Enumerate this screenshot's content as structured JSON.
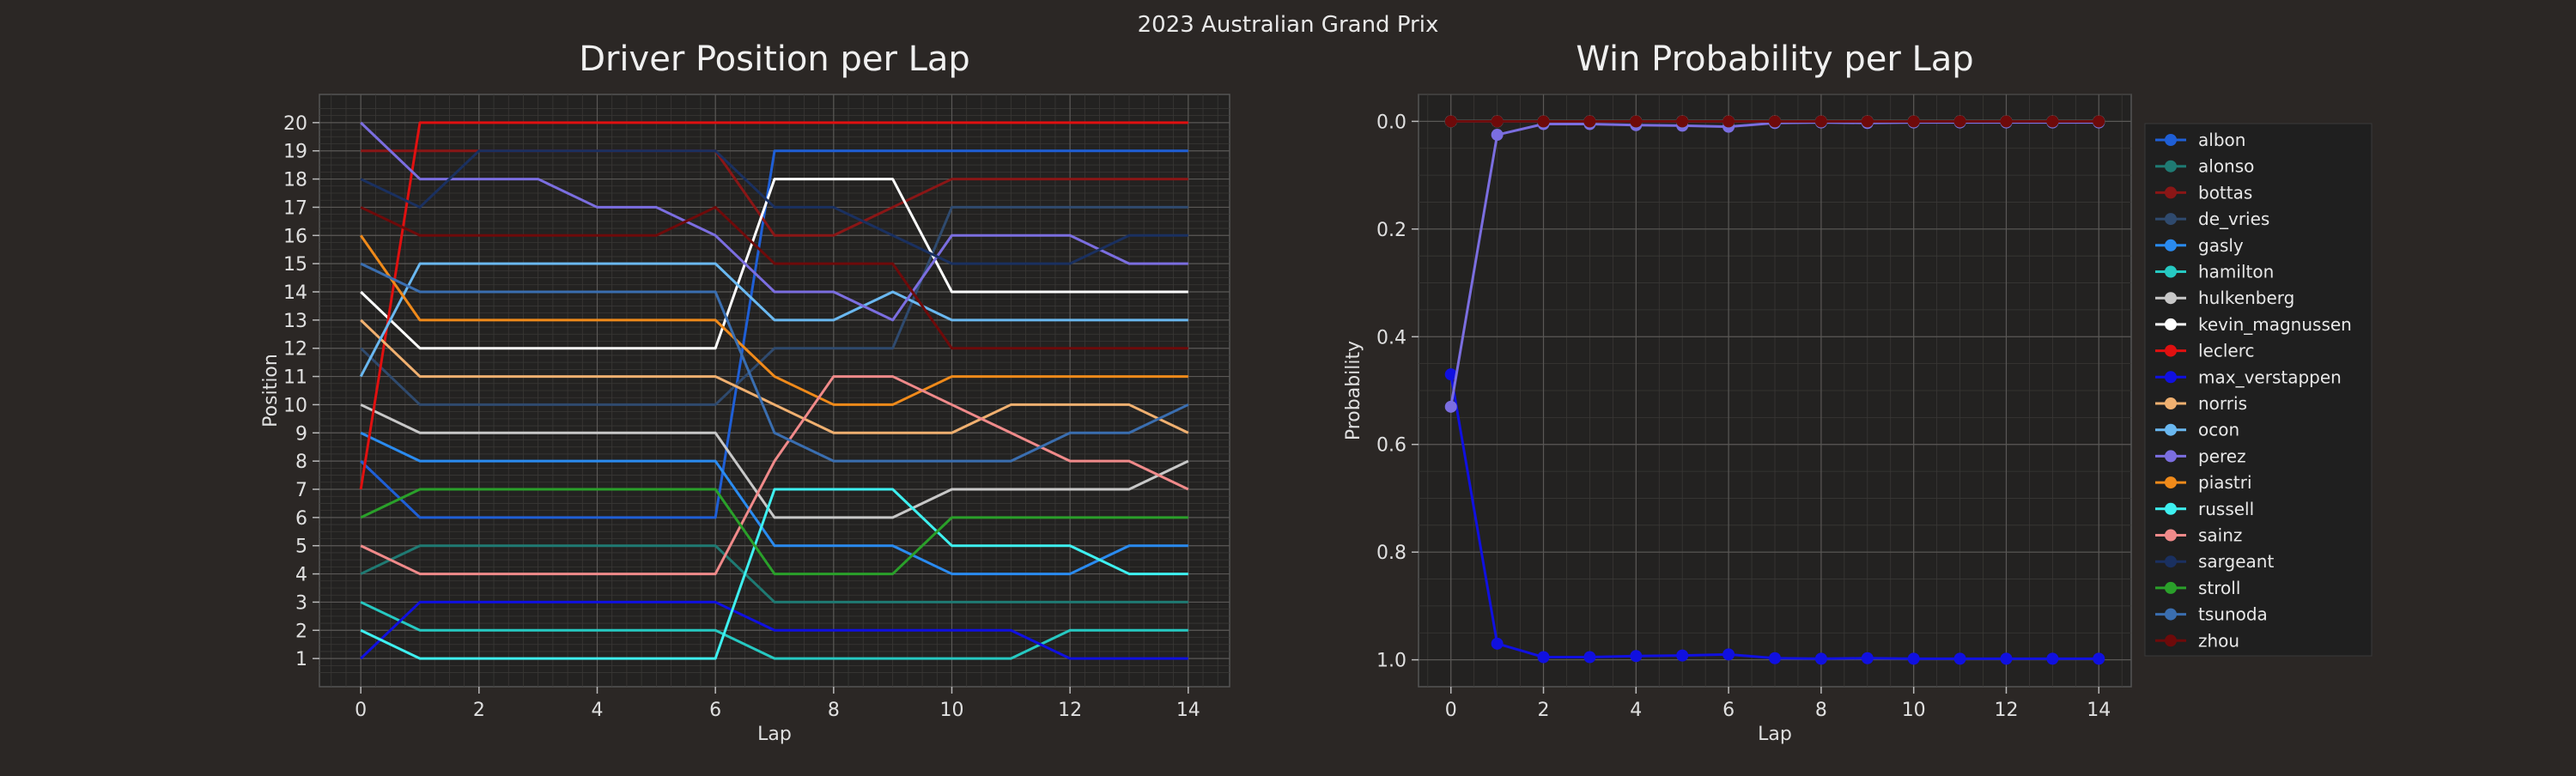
{
  "suptitle": "2023 Australian Grand Prix",
  "chart_data": [
    {
      "type": "line",
      "title": "Driver Position per Lap",
      "xlabel": "Lap",
      "ylabel": "Position",
      "x": [
        0,
        1,
        2,
        3,
        4,
        5,
        6,
        7,
        8,
        9,
        10,
        11,
        12,
        13,
        14
      ],
      "xticks": [
        0,
        2,
        4,
        6,
        8,
        10,
        12,
        14
      ],
      "xlim": [
        -0.7,
        14.7
      ],
      "ylim": [
        21,
        0
      ],
      "yticks": [
        1,
        2,
        3,
        4,
        5,
        6,
        7,
        8,
        9,
        10,
        11,
        12,
        13,
        14,
        15,
        16,
        17,
        18,
        19,
        20
      ],
      "grid": true,
      "series": [
        {
          "name": "albon",
          "color": "#1f5fd6",
          "values": [
            8,
            6,
            6,
            6,
            6,
            6,
            6,
            19,
            19,
            19,
            19,
            19,
            19,
            19,
            19
          ]
        },
        {
          "name": "alonso",
          "color": "#1f7a73",
          "values": [
            4,
            5,
            5,
            5,
            5,
            5,
            5,
            3,
            3,
            3,
            3,
            3,
            3,
            3,
            3
          ]
        },
        {
          "name": "bottas",
          "color": "#8a1616",
          "values": [
            19,
            19,
            19,
            19,
            19,
            19,
            19,
            16,
            16,
            17,
            18,
            18,
            18,
            18,
            18
          ]
        },
        {
          "name": "de_vries",
          "color": "#2f4a6e",
          "values": [
            12,
            10,
            10,
            10,
            10,
            10,
            10,
            12,
            12,
            12,
            17,
            17,
            17,
            17,
            17
          ]
        },
        {
          "name": "gasly",
          "color": "#2a8bf0",
          "values": [
            9,
            8,
            8,
            8,
            8,
            8,
            8,
            5,
            5,
            5,
            4,
            4,
            4,
            5,
            5
          ]
        },
        {
          "name": "hamilton",
          "color": "#26c9c2",
          "values": [
            3,
            2,
            2,
            2,
            2,
            2,
            2,
            1,
            1,
            1,
            1,
            1,
            2,
            2,
            2
          ]
        },
        {
          "name": "hulkenberg",
          "color": "#c8c8c8",
          "values": [
            10,
            9,
            9,
            9,
            9,
            9,
            9,
            6,
            6,
            6,
            7,
            7,
            7,
            7,
            8
          ]
        },
        {
          "name": "kevin_magnussen",
          "color": "#ffffff",
          "values": [
            14,
            12,
            12,
            12,
            12,
            12,
            12,
            18,
            18,
            18,
            14,
            14,
            14,
            14,
            14
          ]
        },
        {
          "name": "leclerc",
          "color": "#e01010",
          "values": [
            7,
            20,
            20,
            20,
            20,
            20,
            20,
            20,
            20,
            20,
            20,
            20,
            20,
            20,
            20
          ]
        },
        {
          "name": "max_verstappen",
          "color": "#1010e0",
          "values": [
            1,
            3,
            3,
            3,
            3,
            3,
            3,
            2,
            2,
            2,
            2,
            2,
            1,
            1,
            1
          ]
        },
        {
          "name": "norris",
          "color": "#f0b070",
          "values": [
            13,
            11,
            11,
            11,
            11,
            11,
            11,
            10,
            9,
            9,
            9,
            10,
            10,
            10,
            9
          ]
        },
        {
          "name": "ocon",
          "color": "#6ab8f0",
          "values": [
            11,
            15,
            15,
            15,
            15,
            15,
            15,
            13,
            13,
            14,
            13,
            13,
            13,
            13,
            13
          ]
        },
        {
          "name": "perez",
          "color": "#7b6ee0",
          "values": [
            20,
            18,
            18,
            18,
            17,
            17,
            16,
            14,
            14,
            13,
            16,
            16,
            16,
            15,
            15
          ]
        },
        {
          "name": "piastri",
          "color": "#f08a1a",
          "values": [
            16,
            13,
            13,
            13,
            13,
            13,
            13,
            11,
            10,
            10,
            11,
            11,
            11,
            11,
            11
          ]
        },
        {
          "name": "russell",
          "color": "#3ef0f0",
          "values": [
            2,
            1,
            1,
            1,
            1,
            1,
            1,
            7,
            7,
            7,
            5,
            5,
            5,
            4,
            4
          ]
        },
        {
          "name": "sainz",
          "color": "#f08a8a",
          "values": [
            5,
            4,
            4,
            4,
            4,
            4,
            4,
            8,
            11,
            11,
            10,
            9,
            8,
            8,
            7
          ]
        },
        {
          "name": "sargeant",
          "color": "#1a3060",
          "values": [
            18,
            17,
            19,
            19,
            19,
            19,
            19,
            17,
            17,
            16,
            15,
            15,
            15,
            16,
            16
          ]
        },
        {
          "name": "stroll",
          "color": "#2aa02a",
          "values": [
            6,
            7,
            7,
            7,
            7,
            7,
            7,
            4,
            4,
            4,
            6,
            6,
            6,
            6,
            6
          ]
        },
        {
          "name": "tsunoda",
          "color": "#3a6eb0",
          "values": [
            15,
            14,
            14,
            14,
            14,
            14,
            14,
            9,
            8,
            8,
            8,
            8,
            9,
            9,
            10
          ]
        },
        {
          "name": "zhou",
          "color": "#6e0a0a",
          "values": [
            17,
            16,
            16,
            16,
            16,
            16,
            17,
            15,
            15,
            15,
            12,
            12,
            12,
            12,
            12
          ]
        }
      ]
    },
    {
      "type": "line",
      "title": "Win Probability per Lap",
      "xlabel": "Lap",
      "ylabel": "Probability",
      "x": [
        0,
        1,
        2,
        3,
        4,
        5,
        6,
        7,
        8,
        9,
        10,
        11,
        12,
        13,
        14
      ],
      "xticks": [
        0,
        2,
        4,
        6,
        8,
        10,
        12,
        14
      ],
      "xlim": [
        -0.7,
        14.7
      ],
      "ylim": [
        -0.05,
        1.05
      ],
      "yticks": [
        0.0,
        0.2,
        0.4,
        0.6,
        0.8,
        1.0
      ],
      "ytick_labels": [
        "0.0",
        "0.2",
        "0.4",
        "0.6",
        "0.8",
        "1.0"
      ],
      "grid": true,
      "legend_position": "right",
      "series": [
        {
          "name": "albon",
          "color": "#1f5fd6",
          "values": [
            0.0,
            0.0,
            0.0,
            0.0,
            0.0,
            0.0,
            0.0,
            0.0,
            0.0,
            0.0,
            0.0,
            0.0,
            0.0,
            0.0,
            0.0
          ]
        },
        {
          "name": "alonso",
          "color": "#1f7a73",
          "values": [
            0.0,
            0.0,
            0.0,
            0.0,
            0.0,
            0.0,
            0.0,
            0.0,
            0.0,
            0.0,
            0.0,
            0.0,
            0.0,
            0.0,
            0.0
          ]
        },
        {
          "name": "bottas",
          "color": "#8a1616",
          "values": [
            0.0,
            0.0,
            0.0,
            0.0,
            0.0,
            0.0,
            0.0,
            0.0,
            0.0,
            0.0,
            0.0,
            0.0,
            0.0,
            0.0,
            0.0
          ]
        },
        {
          "name": "de_vries",
          "color": "#2f4a6e",
          "values": [
            0.0,
            0.0,
            0.0,
            0.0,
            0.0,
            0.0,
            0.0,
            0.0,
            0.0,
            0.0,
            0.0,
            0.0,
            0.0,
            0.0,
            0.0
          ]
        },
        {
          "name": "gasly",
          "color": "#2a8bf0",
          "values": [
            0.0,
            0.0,
            0.0,
            0.0,
            0.0,
            0.0,
            0.0,
            0.0,
            0.0,
            0.0,
            0.0,
            0.0,
            0.0,
            0.0,
            0.0
          ]
        },
        {
          "name": "hamilton",
          "color": "#26c9c2",
          "values": [
            0.0,
            0.0,
            0.0,
            0.0,
            0.0,
            0.0,
            0.0,
            0.0,
            0.0,
            0.0,
            0.0,
            0.0,
            0.0,
            0.0,
            0.0
          ]
        },
        {
          "name": "hulkenberg",
          "color": "#c8c8c8",
          "values": [
            0.0,
            0.0,
            0.0,
            0.0,
            0.0,
            0.0,
            0.0,
            0.0,
            0.0,
            0.0,
            0.0,
            0.0,
            0.0,
            0.0,
            0.0
          ]
        },
        {
          "name": "kevin_magnussen",
          "color": "#ffffff",
          "values": [
            0.0,
            0.0,
            0.0,
            0.0,
            0.0,
            0.0,
            0.0,
            0.0,
            0.0,
            0.0,
            0.0,
            0.0,
            0.0,
            0.0,
            0.0
          ]
        },
        {
          "name": "leclerc",
          "color": "#e01010",
          "values": [
            0.0,
            0.0,
            0.0,
            0.0,
            0.0,
            0.0,
            0.0,
            0.0,
            0.0,
            0.0,
            0.0,
            0.0,
            0.0,
            0.0,
            0.0
          ]
        },
        {
          "name": "max_verstappen",
          "color": "#1010e0",
          "values": [
            0.47,
            0.97,
            0.995,
            0.995,
            0.993,
            0.992,
            0.99,
            0.997,
            0.998,
            0.997,
            0.998,
            0.998,
            0.998,
            0.998,
            0.998
          ]
        },
        {
          "name": "norris",
          "color": "#f0b070",
          "values": [
            0.0,
            0.0,
            0.0,
            0.0,
            0.0,
            0.0,
            0.0,
            0.0,
            0.0,
            0.0,
            0.0,
            0.0,
            0.0,
            0.0,
            0.0
          ]
        },
        {
          "name": "ocon",
          "color": "#6ab8f0",
          "values": [
            0.0,
            0.0,
            0.0,
            0.0,
            0.0,
            0.0,
            0.0,
            0.0,
            0.0,
            0.0,
            0.0,
            0.0,
            0.0,
            0.0,
            0.0
          ]
        },
        {
          "name": "perez",
          "color": "#7b6ee0",
          "values": [
            0.53,
            0.025,
            0.005,
            0.005,
            0.007,
            0.008,
            0.01,
            0.003,
            0.002,
            0.003,
            0.002,
            0.002,
            0.002,
            0.002,
            0.002
          ]
        },
        {
          "name": "piastri",
          "color": "#f08a1a",
          "values": [
            0.0,
            0.0,
            0.0,
            0.0,
            0.0,
            0.0,
            0.0,
            0.0,
            0.0,
            0.0,
            0.0,
            0.0,
            0.0,
            0.0,
            0.0
          ]
        },
        {
          "name": "russell",
          "color": "#3ef0f0",
          "values": [
            0.0,
            0.0,
            0.0,
            0.0,
            0.0,
            0.0,
            0.0,
            0.0,
            0.0,
            0.0,
            0.0,
            0.0,
            0.0,
            0.0,
            0.0
          ]
        },
        {
          "name": "sainz",
          "color": "#f08a8a",
          "values": [
            0.0,
            0.0,
            0.0,
            0.0,
            0.0,
            0.0,
            0.0,
            0.0,
            0.0,
            0.0,
            0.0,
            0.0,
            0.0,
            0.0,
            0.0
          ]
        },
        {
          "name": "sargeant",
          "color": "#1a3060",
          "values": [
            0.0,
            0.0,
            0.0,
            0.0,
            0.0,
            0.0,
            0.0,
            0.0,
            0.0,
            0.0,
            0.0,
            0.0,
            0.0,
            0.0,
            0.0
          ]
        },
        {
          "name": "stroll",
          "color": "#2aa02a",
          "values": [
            0.0,
            0.0,
            0.0,
            0.0,
            0.0,
            0.0,
            0.0,
            0.0,
            0.0,
            0.0,
            0.0,
            0.0,
            0.0,
            0.0,
            0.0
          ]
        },
        {
          "name": "tsunoda",
          "color": "#3a6eb0",
          "values": [
            0.0,
            0.0,
            0.0,
            0.0,
            0.0,
            0.0,
            0.0,
            0.0,
            0.0,
            0.0,
            0.0,
            0.0,
            0.0,
            0.0,
            0.0
          ]
        },
        {
          "name": "zhou",
          "color": "#6e0a0a",
          "values": [
            0.0,
            0.0,
            0.0,
            0.0,
            0.0,
            0.0,
            0.0,
            0.0,
            0.0,
            0.0,
            0.0,
            0.0,
            0.0,
            0.0,
            0.0
          ]
        }
      ]
    }
  ]
}
